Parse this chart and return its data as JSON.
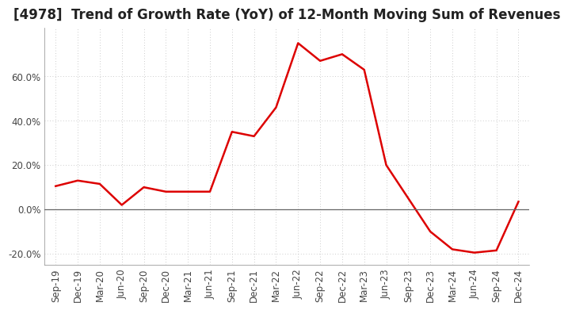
{
  "title": "[4978]  Trend of Growth Rate (YoY) of 12-Month Moving Sum of Revenues",
  "x_labels": [
    "Sep-19",
    "Dec-19",
    "Mar-20",
    "Jun-20",
    "Sep-20",
    "Dec-20",
    "Mar-21",
    "Jun-21",
    "Sep-21",
    "Dec-21",
    "Mar-22",
    "Jun-22",
    "Sep-22",
    "Dec-22",
    "Mar-23",
    "Jun-23",
    "Sep-23",
    "Dec-23",
    "Mar-24",
    "Jun-24",
    "Sep-24",
    "Dec-24"
  ],
  "y_values": [
    10.5,
    13.0,
    11.5,
    2.0,
    10.0,
    8.0,
    8.0,
    8.0,
    35.0,
    33.0,
    46.0,
    75.0,
    67.0,
    70.0,
    63.0,
    20.0,
    5.0,
    -10.0,
    -18.0,
    -19.5,
    -18.5,
    3.5
  ],
  "line_color": "#dd0000",
  "line_width": 1.8,
  "ylim": [
    -25,
    82
  ],
  "yticks": [
    -20.0,
    0.0,
    20.0,
    40.0,
    60.0
  ],
  "ytick_labels": [
    "-20.0%",
    "0.0%",
    "20.0%",
    "40.0%",
    "60.0%"
  ],
  "background_color": "#ffffff",
  "grid_color": "#bbbbbb",
  "title_fontsize": 12,
  "tick_fontsize": 8.5
}
